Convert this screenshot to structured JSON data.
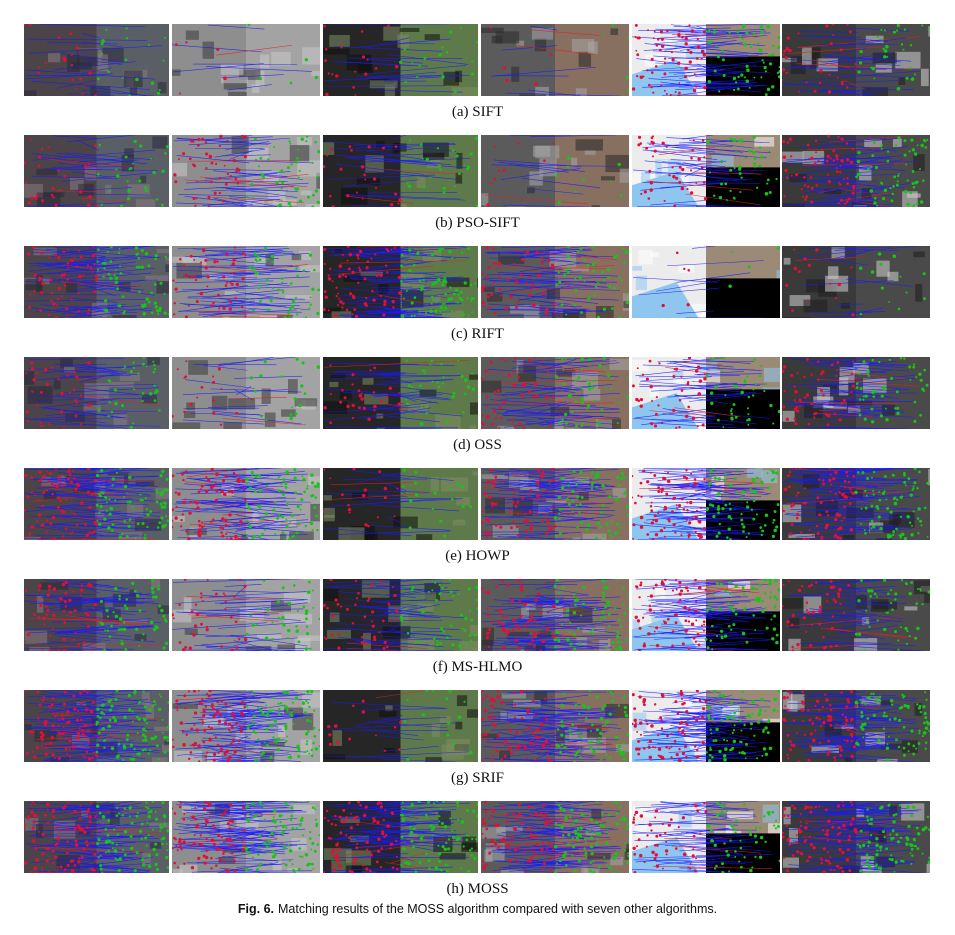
{
  "figure": {
    "rows": [
      {
        "label": "(a) SIFT",
        "density": [
          0.2,
          0.05,
          0.2,
          0.05,
          0.7,
          0.35
        ]
      },
      {
        "label": "(b) PSO-SIFT",
        "density": [
          0.3,
          0.5,
          0.25,
          0.1,
          0.45,
          0.7
        ]
      },
      {
        "label": "(c) RIFT",
        "density": [
          0.7,
          0.6,
          0.8,
          0.6,
          0.05,
          0.15
        ]
      },
      {
        "label": "(d) OSS",
        "density": [
          0.4,
          0.2,
          0.35,
          0.55,
          0.45,
          0.55
        ]
      },
      {
        "label": "(e) HOWP",
        "density": [
          0.9,
          0.9,
          0.2,
          0.8,
          0.9,
          0.9
        ]
      },
      {
        "label": "(f) MS-HLMO",
        "density": [
          0.6,
          0.4,
          0.5,
          0.8,
          0.8,
          0.5
        ]
      },
      {
        "label": "(g) SRIF",
        "density": [
          1.0,
          1.0,
          0.15,
          0.9,
          0.9,
          0.9
        ]
      },
      {
        "label": "(h) MOSS",
        "density": [
          1.0,
          1.0,
          0.9,
          1.0,
          0.6,
          1.0
        ]
      }
    ],
    "caption_label": "Fig. 6.",
    "caption_text": "Matching results of the MOSS algorithm compared with seven other algorithms."
  }
}
